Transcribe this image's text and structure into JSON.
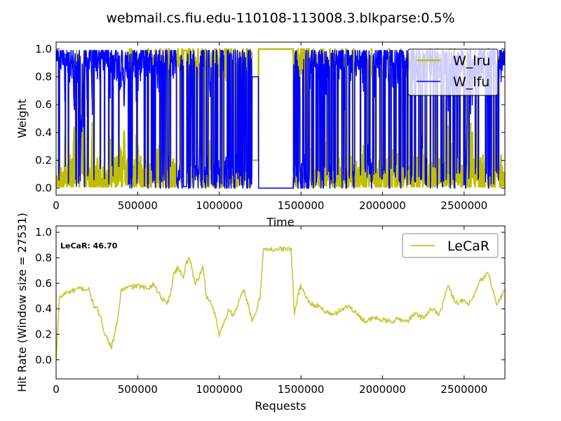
{
  "figure": {
    "title": "webmail.cs.fiu.edu-110108-113008.3.blkparse:0.5%"
  },
  "chart_data": [
    {
      "type": "line",
      "xlabel": "Time",
      "ylabel": "Weight",
      "xlim": [
        0,
        2750000
      ],
      "ylim": [
        -0.05,
        1.05
      ],
      "x_ticks": [
        0,
        500000,
        1000000,
        1500000,
        2000000,
        2500000
      ],
      "y_ticks": [
        0.0,
        0.2,
        0.4,
        0.6,
        0.8,
        1.0
      ],
      "x_tick_labels": [
        "0",
        "500000",
        "1000000",
        "1500000",
        "2000000",
        "2500000"
      ],
      "y_tick_labels": [
        "0.0",
        "0.2",
        "0.4",
        "0.6",
        "0.8",
        "1.0"
      ],
      "legend_placement": "top-right",
      "grid": false,
      "series": [
        {
          "name": "W_lru",
          "color": "#bfbf00",
          "style": "oscillating",
          "segments": [
            {
              "x0": 0,
              "x1": 780000,
              "mode": "noisy",
              "level": 0.2
            },
            {
              "x0": 780000,
              "x1": 800000,
              "mode": "flat",
              "level": 0.99
            },
            {
              "x0": 800000,
              "x1": 1200000,
              "mode": "noisy",
              "level": 0.6
            },
            {
              "x0": 1200000,
              "x1": 1240000,
              "mode": "flat",
              "level": 0.2
            },
            {
              "x0": 1240000,
              "x1": 1450000,
              "mode": "flat",
              "level": 1.0
            },
            {
              "x0": 1450000,
              "x1": 2750000,
              "mode": "noisy",
              "level": 0.3
            }
          ]
        },
        {
          "name": "W_lfu",
          "color": "#0000ff",
          "style": "oscillating",
          "segments": [
            {
              "x0": 0,
              "x1": 780000,
              "mode": "noisy",
              "level": 0.8
            },
            {
              "x0": 780000,
              "x1": 800000,
              "mode": "flat",
              "level": 0.01
            },
            {
              "x0": 800000,
              "x1": 1200000,
              "mode": "noisy",
              "level": 0.4
            },
            {
              "x0": 1200000,
              "x1": 1240000,
              "mode": "flat",
              "level": 0.8
            },
            {
              "x0": 1240000,
              "x1": 1450000,
              "mode": "flat",
              "level": 0.0
            },
            {
              "x0": 1450000,
              "x1": 2750000,
              "mode": "noisy",
              "level": 0.7
            }
          ]
        }
      ]
    },
    {
      "type": "line",
      "xlabel": "Requests",
      "ylabel": "Hit Rate (Window size = 27531)",
      "xlim": [
        0,
        2750000
      ],
      "ylim": [
        -0.15,
        1.05
      ],
      "x_ticks": [
        0,
        500000,
        1000000,
        1500000,
        2000000,
        2500000
      ],
      "y_ticks": [
        0.0,
        0.2,
        0.4,
        0.6,
        0.8,
        1.0
      ],
      "x_tick_labels": [
        "0",
        "500000",
        "1000000",
        "1500000",
        "2000000",
        "2500000"
      ],
      "y_tick_labels": [
        "0.0",
        "0.2",
        "0.4",
        "0.6",
        "0.8",
        "1.0"
      ],
      "legend_placement": "top-right",
      "grid": false,
      "annotation": "LeCaR:  46.70",
      "series": [
        {
          "name": "LeCaR",
          "color": "#c8c83c",
          "x": [
            0,
            20000,
            50000,
            100000,
            150000,
            200000,
            230000,
            250000,
            280000,
            300000,
            320000,
            340000,
            360000,
            380000,
            400000,
            450000,
            500000,
            550000,
            600000,
            650000,
            680000,
            700000,
            720000,
            750000,
            780000,
            800000,
            820000,
            850000,
            880000,
            900000,
            920000,
            950000,
            980000,
            1000000,
            1030000,
            1060000,
            1080000,
            1100000,
            1120000,
            1150000,
            1180000,
            1200000,
            1220000,
            1250000,
            1270000,
            1300000,
            1350000,
            1400000,
            1440000,
            1460000,
            1480000,
            1500000,
            1550000,
            1600000,
            1650000,
            1700000,
            1750000,
            1800000,
            1850000,
            1900000,
            1950000,
            2000000,
            2050000,
            2100000,
            2150000,
            2200000,
            2250000,
            2300000,
            2350000,
            2400000,
            2450000,
            2500000,
            2530000,
            2560000,
            2600000,
            2650000,
            2700000,
            2750000
          ],
          "values": [
            0.0,
            0.48,
            0.52,
            0.54,
            0.56,
            0.55,
            0.43,
            0.4,
            0.3,
            0.2,
            0.15,
            0.1,
            0.2,
            0.35,
            0.55,
            0.57,
            0.58,
            0.56,
            0.59,
            0.48,
            0.45,
            0.5,
            0.68,
            0.72,
            0.65,
            0.77,
            0.79,
            0.6,
            0.66,
            0.73,
            0.5,
            0.45,
            0.32,
            0.2,
            0.3,
            0.4,
            0.35,
            0.38,
            0.45,
            0.55,
            0.42,
            0.3,
            0.35,
            0.5,
            0.87,
            0.86,
            0.87,
            0.87,
            0.87,
            0.35,
            0.5,
            0.58,
            0.45,
            0.42,
            0.38,
            0.35,
            0.4,
            0.42,
            0.35,
            0.3,
            0.33,
            0.31,
            0.3,
            0.32,
            0.3,
            0.36,
            0.33,
            0.4,
            0.36,
            0.58,
            0.45,
            0.46,
            0.43,
            0.5,
            0.62,
            0.68,
            0.43,
            0.55
          ]
        }
      ]
    }
  ]
}
